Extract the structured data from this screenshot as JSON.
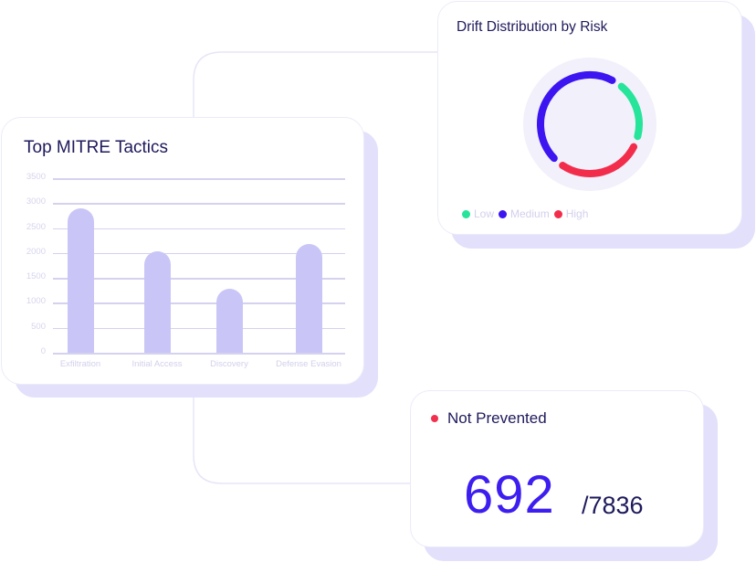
{
  "colors": {
    "bar": "#c9c6f7",
    "low": "#27e49b",
    "medium": "#3c15f0",
    "high": "#f22d4b",
    "title": "#1e1a5c",
    "accent_value": "#3d1ef0",
    "status_dot": "#f1304d"
  },
  "tactics_card": {
    "title": "Top MITRE Tactics",
    "yticks": [
      "3500",
      "3000",
      "2500",
      "2000",
      "1500",
      "1000",
      "500",
      "0"
    ],
    "categories": [
      "Exfiltration",
      "Initial Access",
      "Discovery",
      "Defense Evasion"
    ]
  },
  "drift_card": {
    "title": "Drift Distribution by Risk",
    "legend": [
      {
        "label": "Low",
        "color": "#27e49b"
      },
      {
        "label": "Medium",
        "color": "#3c15f0"
      },
      {
        "label": "High",
        "color": "#f22d4b"
      }
    ]
  },
  "not_prevented_card": {
    "label": "Not Prevented",
    "value": "692",
    "total": "/7836"
  },
  "chart_data": [
    {
      "type": "bar",
      "title": "Top MITRE Tactics",
      "categories": [
        "Exfiltration",
        "Initial Access",
        "Discovery",
        "Defense Evasion"
      ],
      "values": [
        2890,
        2030,
        1280,
        2180
      ],
      "xlabel": "",
      "ylabel": "",
      "ylim": [
        0,
        3500
      ],
      "yticks": [
        0,
        500,
        1000,
        1500,
        2000,
        2500,
        3000,
        3500
      ],
      "grid": true,
      "legend": null
    },
    {
      "type": "pie",
      "variant": "donut",
      "title": "Drift Distribution by Risk",
      "categories": [
        "Low",
        "Medium",
        "High"
      ],
      "values": [
        20,
        50,
        30
      ],
      "colors": [
        "#27e49b",
        "#3c15f0",
        "#f22d4b"
      ],
      "legend_position": "bottom"
    }
  ]
}
